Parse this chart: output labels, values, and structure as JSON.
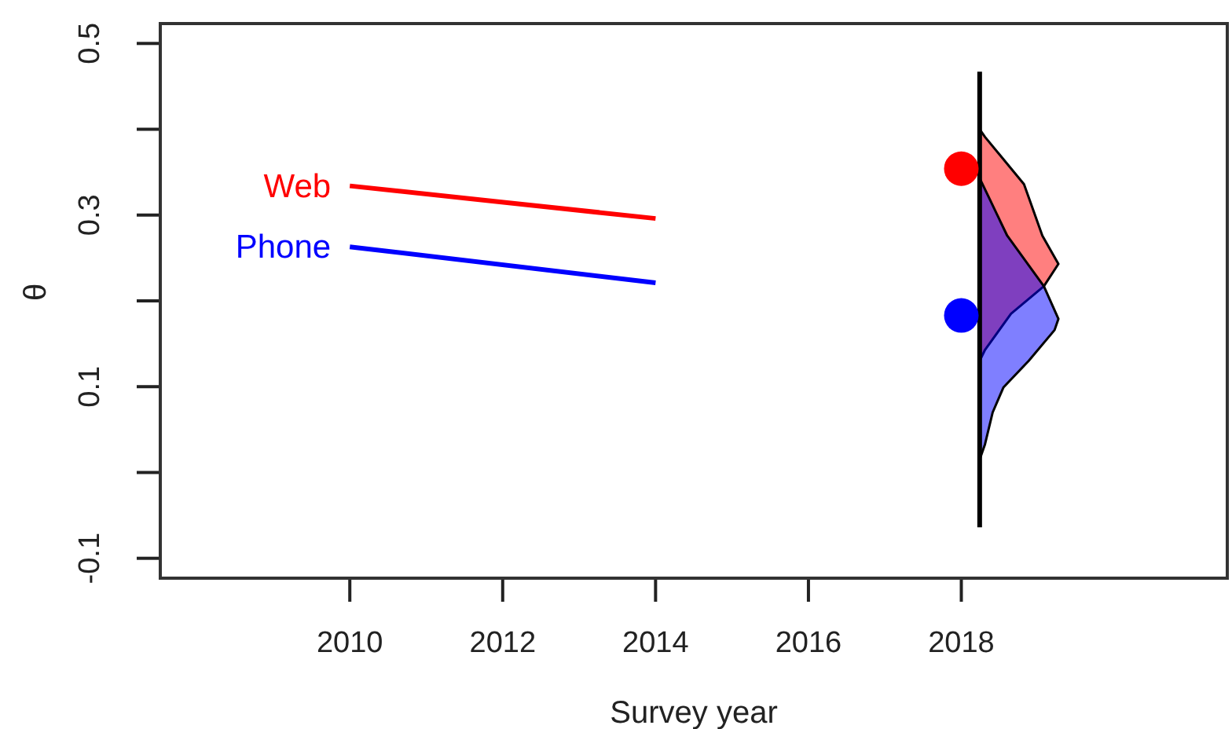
{
  "chart_data": {
    "type": "line",
    "xlabel": "Survey year",
    "ylabel": "θ",
    "xlim": [
      2007.5,
      2021.5
    ],
    "xticks": [
      2010,
      2012,
      2014,
      2016,
      2018
    ],
    "ylim": [
      -0.125,
      0.525
    ],
    "yticks": [
      -0.1,
      {
        "value": 0,
        "label": null
      },
      0.1,
      {
        "value": 0.2,
        "label": null
      },
      0.3,
      {
        "value": 0.4,
        "label": null
      },
      0.5
    ],
    "grid": false,
    "legend": false,
    "marker": "none",
    "series": [
      {
        "name": "Web",
        "color": "#ff0000",
        "x": [
          2010,
          2014
        ],
        "values": [
          0.334,
          0.296
        ]
      },
      {
        "name": "Phone",
        "color": "#0000ff",
        "x": [
          2010,
          2014
        ],
        "values": [
          0.263,
          0.221
        ]
      },
      {
        "type": "line",
        "color": "#000000",
        "x": [
          2018.24,
          2018.24
        ],
        "values": [
          0.467,
          -0.064
        ]
      },
      {
        "type": "area",
        "color": "#ff0000",
        "x": [
          2018.24,
          2018.31,
          2018.82,
          2019.06,
          2019.27,
          2019.08,
          2018.65,
          2018.31,
          2018.24
        ],
        "values": [
          0.4,
          0.391,
          0.336,
          0.276,
          0.243,
          0.217,
          0.185,
          0.143,
          0.13
        ]
      },
      {
        "type": "area",
        "color": "#0000ff",
        "x": [
          2018.24,
          2018.6,
          2019.08,
          2019.27,
          2019.22,
          2018.88,
          2018.55,
          2018.41,
          2018.31,
          2018.24
        ],
        "values": [
          0.343,
          0.276,
          0.217,
          0.179,
          0.166,
          0.13,
          0.099,
          0.07,
          0.033,
          0.015
        ]
      },
      {
        "type": "scatter",
        "color": "#ff0000",
        "marker": "circle",
        "x": [
          2018
        ],
        "values": [
          0.354
        ]
      },
      {
        "type": "scatter",
        "color": "#0000ff",
        "marker": "circle",
        "x": [
          2018
        ],
        "values": [
          0.183
        ]
      }
    ]
  }
}
